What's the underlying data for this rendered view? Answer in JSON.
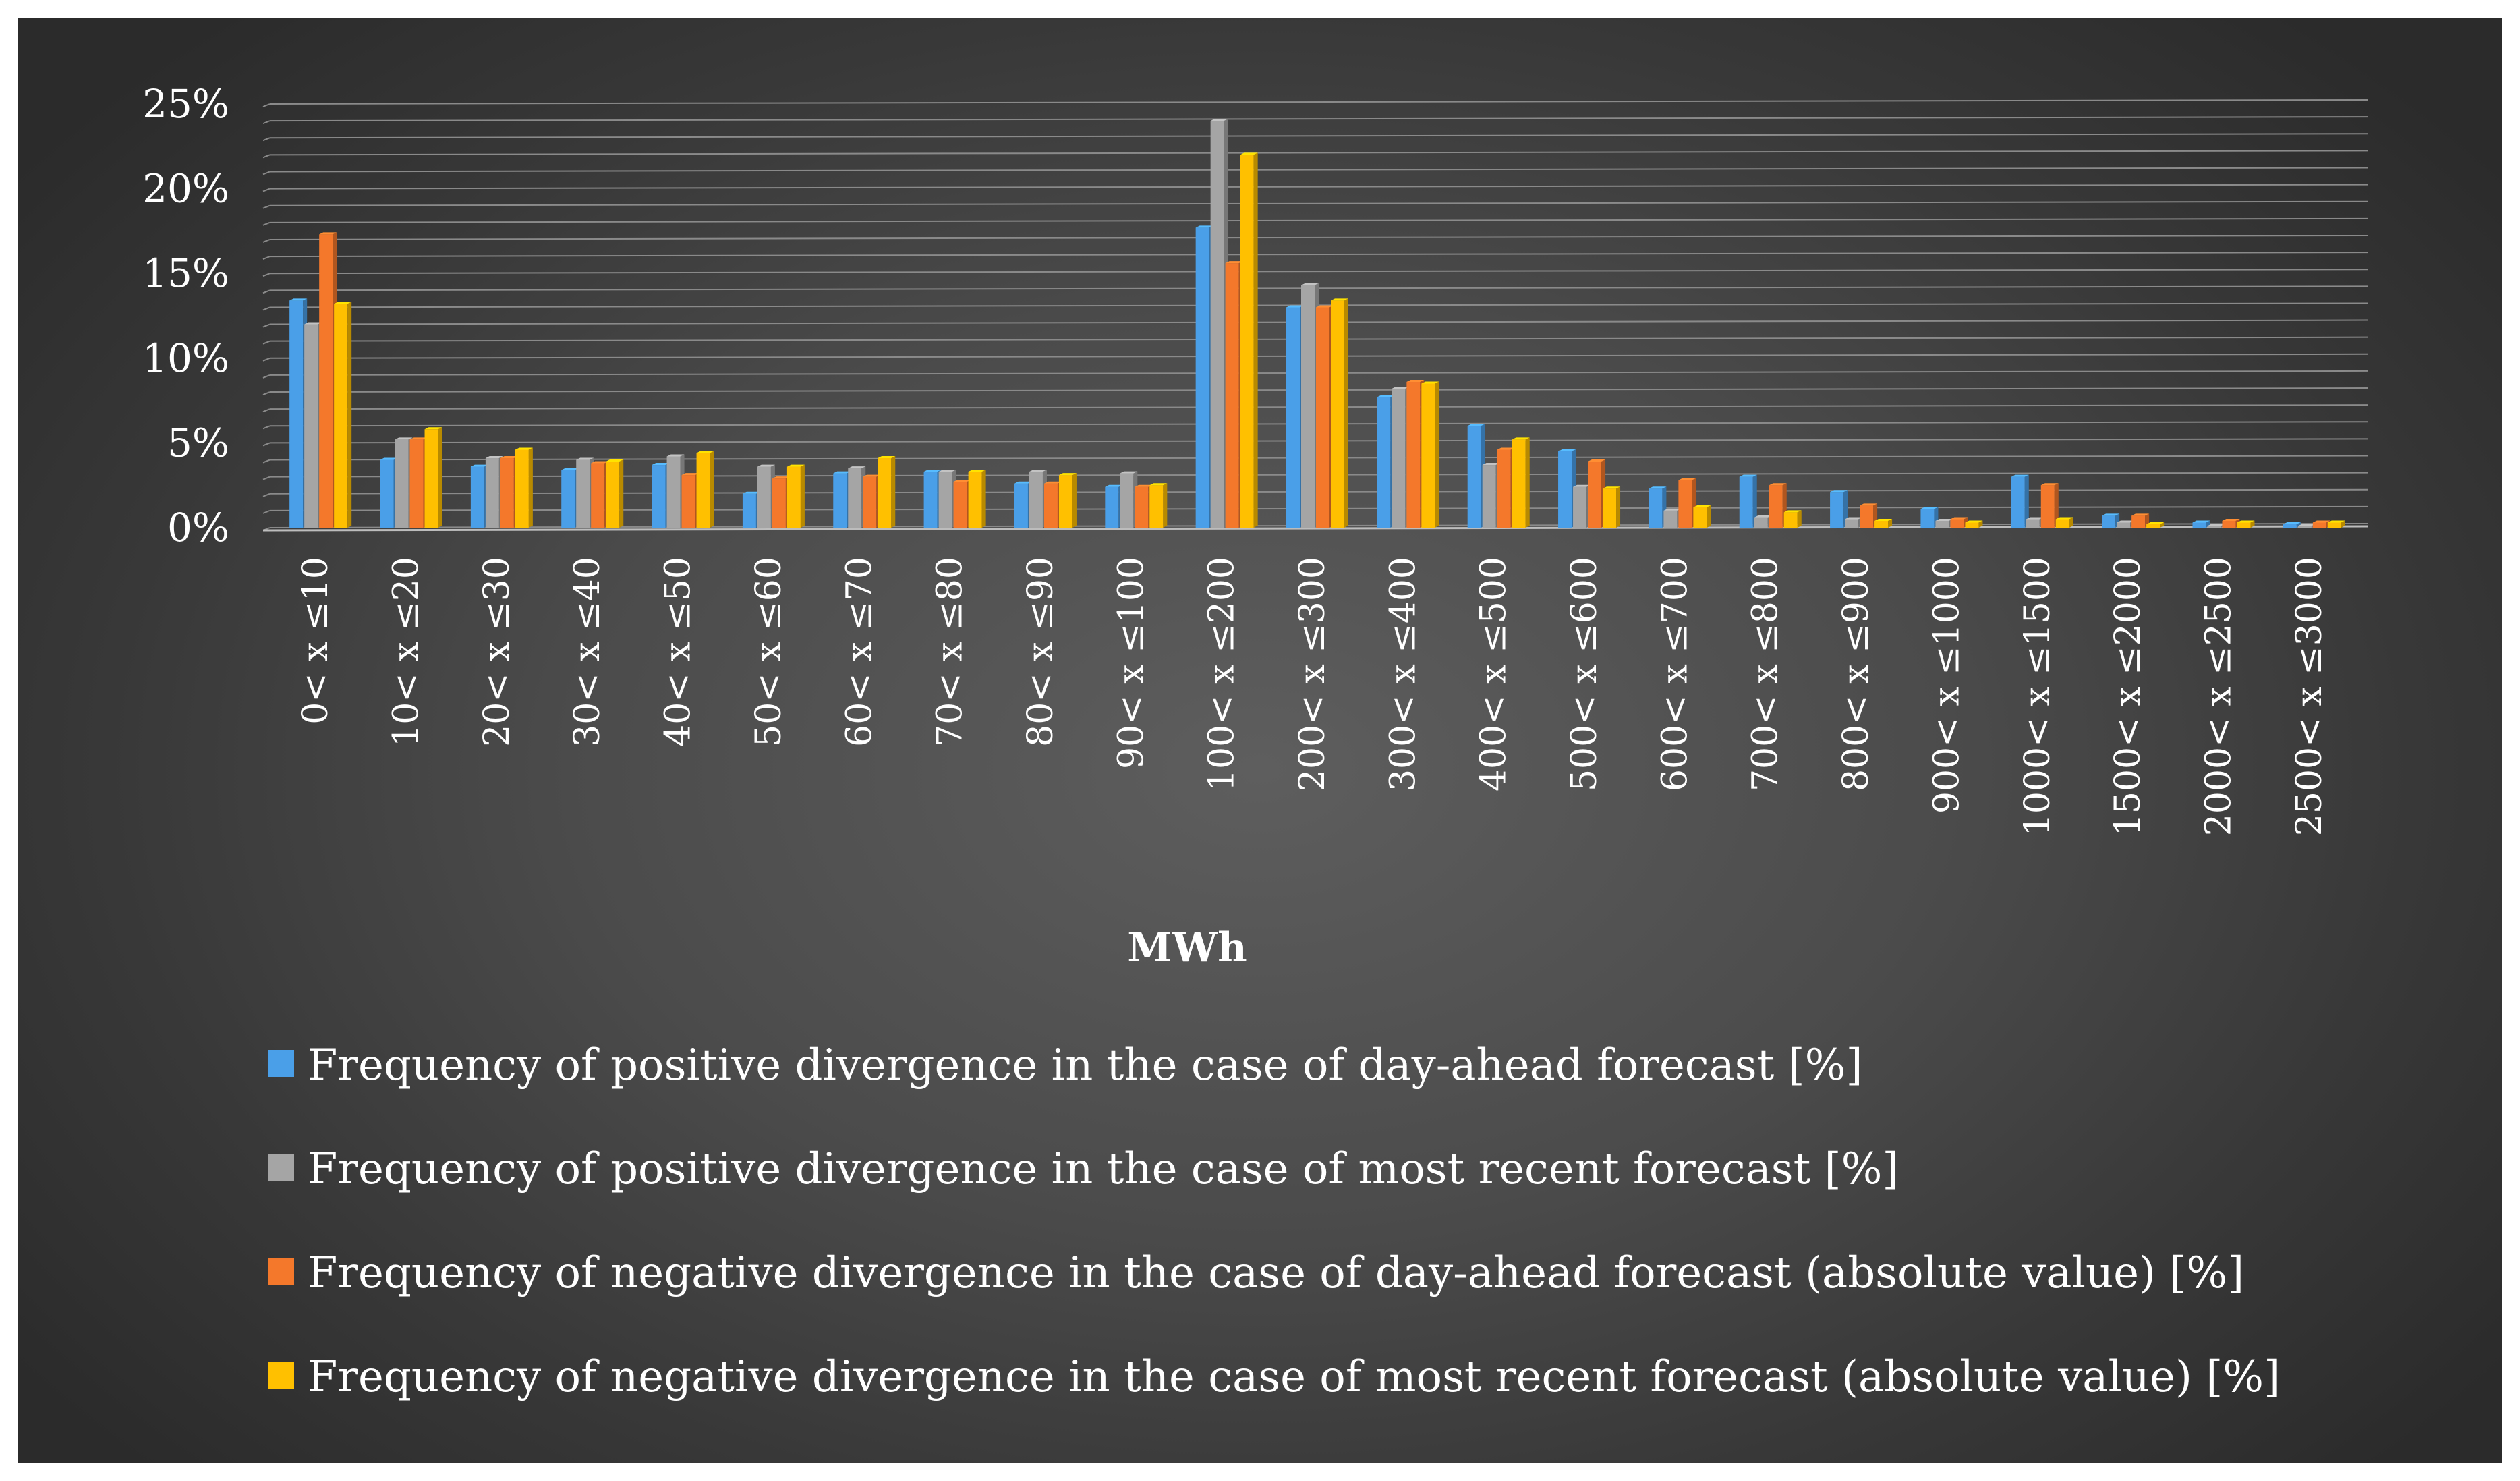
{
  "chart_data": {
    "type": "bar",
    "xlabel": "MWh",
    "ylabel": "",
    "ylim": [
      0,
      25
    ],
    "y_ticks": [
      "0%",
      "5%",
      "10%",
      "15%",
      "20%",
      "25%"
    ],
    "grid": true,
    "legend_position": "bottom",
    "categories": [
      "0< x ≤10",
      "10< x ≤20",
      "20< x ≤30",
      "30< x ≤40",
      "40< x ≤50",
      "50< x ≤60",
      "60< x ≤70",
      "70< x ≤80",
      "80< x ≤90",
      "90< x ≤100",
      "100< x ≤200",
      "200< x ≤300",
      "300< x ≤400",
      "400< x ≤500",
      "500< x ≤600",
      "600< x ≤700",
      "700< x ≤800",
      "800< x ≤900",
      "900< x ≤1000",
      "1000< x ≤1500",
      "1500< x ≤2000",
      "2000< x ≤2500",
      "2500< x ≤3000"
    ],
    "series": [
      {
        "name": "Frequency of positive divergence in the case of day-ahead forecast [%]",
        "color": "#4a9fe8",
        "values": [
          13.4,
          4.0,
          3.6,
          3.4,
          3.7,
          2.0,
          3.2,
          3.3,
          2.6,
          2.4,
          17.7,
          13.0,
          7.7,
          6.0,
          4.5,
          2.3,
          3.0,
          2.1,
          1.1,
          3.0,
          0.7,
          0.3,
          0.2
        ]
      },
      {
        "name": "Frequency of positive divergence in the case of most recent forecast [%]",
        "color": "#a5a5a5",
        "values": [
          12.0,
          5.2,
          4.1,
          4.0,
          4.2,
          3.6,
          3.5,
          3.3,
          3.3,
          3.2,
          24.0,
          14.3,
          8.2,
          3.7,
          2.4,
          1.0,
          0.6,
          0.5,
          0.4,
          0.5,
          0.3,
          0.1,
          0.1
        ]
      },
      {
        "name": "Frequency of negative divergence in the case of day-ahead forecast (absolute value) [%]",
        "color": "#f4782b",
        "values": [
          17.3,
          5.2,
          4.1,
          3.8,
          3.1,
          2.9,
          3.0,
          2.7,
          2.6,
          2.4,
          15.6,
          13.0,
          8.6,
          4.6,
          3.9,
          2.8,
          2.5,
          1.3,
          0.5,
          2.5,
          0.7,
          0.4,
          0.3
        ]
      },
      {
        "name": "Frequency of negative divergence in the case of most recent forecast (absolute value) [%]",
        "color": "#ffc000",
        "values": [
          13.2,
          5.8,
          4.6,
          3.9,
          4.4,
          3.6,
          4.1,
          3.3,
          3.1,
          2.5,
          22.0,
          13.4,
          8.5,
          5.2,
          2.3,
          1.2,
          0.9,
          0.4,
          0.3,
          0.5,
          0.2,
          0.3,
          0.3
        ]
      }
    ]
  }
}
